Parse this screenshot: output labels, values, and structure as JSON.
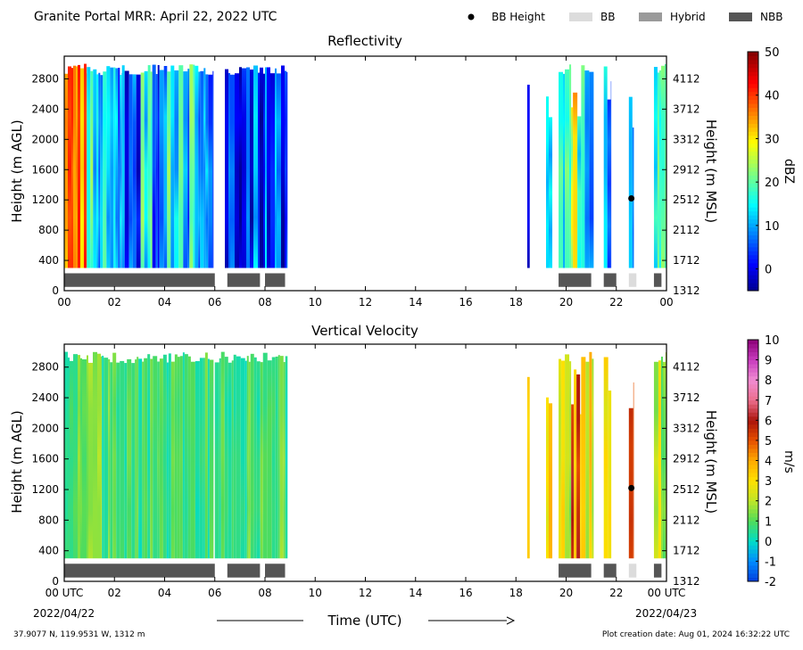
{
  "header": {
    "title": "Granite Portal MRR:  April 22, 2022 UTC",
    "legend": [
      {
        "label": "BB Height",
        "kind": "dot",
        "color": "#000000"
      },
      {
        "label": "BB",
        "kind": "bar",
        "color": "#dcdcdc"
      },
      {
        "label": "Hybrid",
        "kind": "bar",
        "color": "#9a9a9a"
      },
      {
        "label": "NBB",
        "kind": "bar",
        "color": "#555555"
      }
    ]
  },
  "footer": {
    "location": "37.9077 N, 119.9531 W, 1312 m",
    "creation": "Plot creation date: Aug 01, 2024 16:32:22 UTC",
    "xlabel": "Time (UTC)",
    "start_date": "2022/04/22",
    "end_date": "2022/04/23"
  },
  "chart_data": [
    {
      "type": "heatmap",
      "title": "Reflectivity",
      "ylabel": "Height (m AGL)",
      "ylabel_right": "Height (m MSL)",
      "xlim": [
        0,
        24
      ],
      "ylim": [
        0,
        3100
      ],
      "xticks": [
        "00",
        "02",
        "04",
        "06",
        "08",
        "10",
        "12",
        "14",
        "16",
        "18",
        "20",
        "22",
        "00"
      ],
      "yticks_left": [
        0,
        400,
        800,
        1200,
        1600,
        2000,
        2400,
        2800
      ],
      "yticks_right": [
        1312,
        1712,
        2112,
        2512,
        2912,
        3312,
        3712,
        4112
      ],
      "colorbar": {
        "label": "dBZ",
        "min": -5,
        "max": 50,
        "ticks": [
          0,
          10,
          20,
          30,
          40,
          50
        ],
        "scheme": "jet"
      },
      "data_region_height": [
        300,
        3000
      ],
      "segments": [
        {
          "start": 0.0,
          "end": 0.9,
          "value": 36,
          "spread": 6
        },
        {
          "start": 0.9,
          "end": 2.3,
          "value": 12,
          "spread": 10
        },
        {
          "start": 2.3,
          "end": 4.1,
          "value": 10,
          "spread": 11
        },
        {
          "start": 4.1,
          "end": 5.95,
          "value": 12,
          "spread": 10
        },
        {
          "start": 6.4,
          "end": 8.9,
          "value": 6,
          "spread": 9
        },
        {
          "start": 18.45,
          "end": 18.55,
          "value": 4,
          "spread": 6
        },
        {
          "start": 19.2,
          "end": 19.45,
          "value": 5,
          "spread": 8
        },
        {
          "start": 19.7,
          "end": 20.2,
          "value": 14,
          "spread": 10
        },
        {
          "start": 20.2,
          "end": 20.6,
          "value": 25,
          "spread": 14
        },
        {
          "start": 20.6,
          "end": 21.1,
          "value": 12,
          "spread": 8
        },
        {
          "start": 21.5,
          "end": 21.8,
          "value": 10,
          "spread": 8
        },
        {
          "start": 22.5,
          "end": 22.7,
          "value": 10,
          "spread": 5
        },
        {
          "start": 23.5,
          "end": 24.0,
          "value": 14,
          "spread": 10
        }
      ],
      "bb_height": [
        {
          "x": 22.6,
          "y": 1220
        }
      ],
      "bb_class": [
        {
          "start": 0.0,
          "end": 6.0,
          "class": "NBB"
        },
        {
          "start": 6.5,
          "end": 7.8,
          "class": "NBB"
        },
        {
          "start": 8.0,
          "end": 8.8,
          "class": "NBB"
        },
        {
          "start": 19.7,
          "end": 21.0,
          "class": "NBB"
        },
        {
          "start": 21.5,
          "end": 22.0,
          "class": "NBB"
        },
        {
          "start": 22.5,
          "end": 22.8,
          "class": "BB"
        },
        {
          "start": 23.5,
          "end": 23.8,
          "class": "NBB"
        }
      ]
    },
    {
      "type": "heatmap",
      "title": "Vertical Velocity",
      "ylabel": "Height (m AGL)",
      "ylabel_right": "Height (m MSL)",
      "xlim": [
        0,
        24
      ],
      "ylim": [
        0,
        3100
      ],
      "xticks": [
        "00 UTC",
        "02",
        "04",
        "06",
        "08",
        "10",
        "12",
        "14",
        "16",
        "18",
        "20",
        "22",
        "00 UTC"
      ],
      "yticks_left": [
        0,
        400,
        800,
        1200,
        1600,
        2000,
        2400,
        2800
      ],
      "yticks_right": [
        1312,
        1712,
        2112,
        2512,
        2912,
        3312,
        3712,
        4112
      ],
      "colorbar": {
        "label": "m/s",
        "min": -2,
        "max": 10,
        "ticks": [
          -2,
          -1,
          0,
          1,
          2,
          3,
          4,
          5,
          6,
          7,
          8,
          9,
          10
        ],
        "scheme": "velocity"
      },
      "data_region_height": [
        300,
        3000
      ],
      "segments": [
        {
          "start": 0.0,
          "end": 1.5,
          "value": 1.2,
          "spread": 0.8
        },
        {
          "start": 1.5,
          "end": 3.8,
          "value": 0.9,
          "spread": 0.7
        },
        {
          "start": 3.8,
          "end": 5.95,
          "value": 0.7,
          "spread": 0.6
        },
        {
          "start": 6.0,
          "end": 8.9,
          "value": 0.9,
          "spread": 0.7
        },
        {
          "start": 18.45,
          "end": 18.55,
          "value": 3.6,
          "spread": 0.6
        },
        {
          "start": 19.2,
          "end": 19.45,
          "value": 3.8,
          "spread": 1.0
        },
        {
          "start": 19.7,
          "end": 20.2,
          "value": 2.5,
          "spread": 1.3
        },
        {
          "start": 20.2,
          "end": 20.6,
          "value": 4.5,
          "spread": 1.6
        },
        {
          "start": 20.6,
          "end": 21.1,
          "value": 2.5,
          "spread": 1.4
        },
        {
          "start": 21.5,
          "end": 21.8,
          "value": 3.2,
          "spread": 1.2
        },
        {
          "start": 22.5,
          "end": 22.7,
          "value": 5.6,
          "spread": 0.6
        },
        {
          "start": 23.5,
          "end": 24.0,
          "value": 2.3,
          "spread": 1.3
        }
      ],
      "bb_height": [
        {
          "x": 22.6,
          "y": 1220
        }
      ],
      "bb_class": [
        {
          "start": 0.0,
          "end": 6.0,
          "class": "NBB"
        },
        {
          "start": 6.5,
          "end": 7.8,
          "class": "NBB"
        },
        {
          "start": 8.0,
          "end": 8.8,
          "class": "NBB"
        },
        {
          "start": 19.7,
          "end": 21.0,
          "class": "NBB"
        },
        {
          "start": 21.5,
          "end": 22.0,
          "class": "NBB"
        },
        {
          "start": 22.5,
          "end": 22.8,
          "class": "BB"
        },
        {
          "start": 23.5,
          "end": 23.8,
          "class": "NBB"
        }
      ]
    }
  ]
}
